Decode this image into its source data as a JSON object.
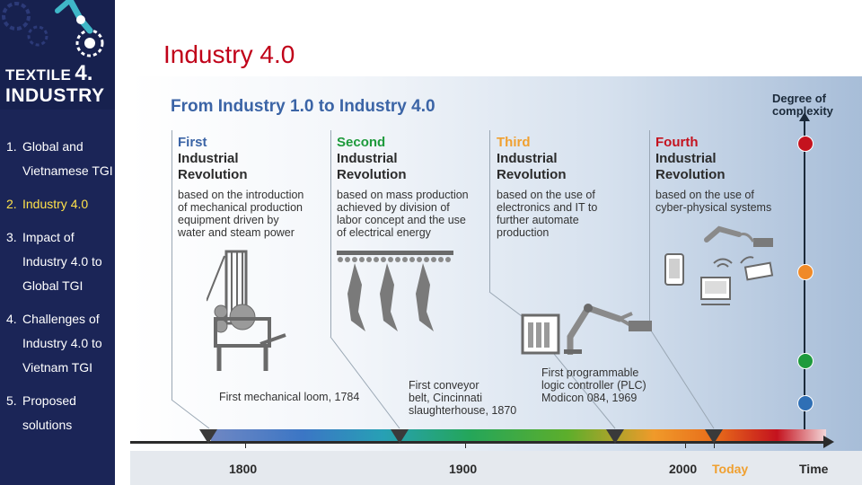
{
  "slide": {
    "title": "Industry 4.0"
  },
  "logo": {
    "line1": "TEXTILE",
    "num": "4.",
    "line2": "INDUSTRY"
  },
  "nav": {
    "items": [
      {
        "number": "1.",
        "lines": [
          "Global and",
          "Vietnamese TGI"
        ],
        "active": false
      },
      {
        "number": "2.",
        "lines": [
          "Industry 4.0"
        ],
        "active": true
      },
      {
        "number": "3.",
        "lines": [
          "Impact of",
          "Industry 4.0 to",
          "Global TGI"
        ],
        "active": false
      },
      {
        "number": "4.",
        "lines": [
          "Challenges of",
          "Industry 4.0 to",
          "Vietnam TGI"
        ],
        "active": false
      },
      {
        "number": "5.",
        "lines": [
          "Proposed",
          "solutions"
        ],
        "active": false
      }
    ]
  },
  "infographic": {
    "title": "From Industry 1.0 to Industry 4.0",
    "degree_label": [
      "Degree of",
      "complexity"
    ],
    "revolutions": [
      {
        "ordinal": "First",
        "name": [
          "Industrial",
          "Revolution"
        ],
        "color": "#3b64a6",
        "description": [
          "based on the introduction",
          "of mechanical production",
          "equipment driven by",
          "water and steam power"
        ]
      },
      {
        "ordinal": "Second",
        "name": [
          "Industrial",
          "Revolution"
        ],
        "color": "#1e9a3c",
        "description": [
          "based on mass production",
          "achieved by division of",
          "labor concept and the use",
          "of electrical energy"
        ]
      },
      {
        "ordinal": "Third",
        "name": [
          "Industrial",
          "Revolution"
        ],
        "color": "#f0a030",
        "description": [
          "based on the use of",
          "electronics and IT to",
          "further automate",
          "production"
        ]
      },
      {
        "ordinal": "Fourth",
        "name": [
          "Industrial",
          "Revolution"
        ],
        "color": "#c4121e",
        "description": [
          "based on the use of",
          "cyber-physical systems"
        ]
      }
    ],
    "milestones": [
      {
        "caption": [
          "First mechanical loom, 1784"
        ]
      },
      {
        "caption": [
          "First conveyor",
          "belt, Cincinnati",
          "slaughterhouse, 1870"
        ]
      },
      {
        "caption": [
          "First programmable",
          "logic controller (PLC)",
          "Modicon 084, 1969"
        ]
      }
    ],
    "complexity_dots": [
      "#c4121e",
      "#f08a28",
      "#1e9a3c",
      "#2f6fb5"
    ],
    "timeline": {
      "years": [
        "1800",
        "1900",
        "2000"
      ],
      "today_label": "Today",
      "today_color": "#f0a030",
      "axis_label": "Time"
    }
  }
}
